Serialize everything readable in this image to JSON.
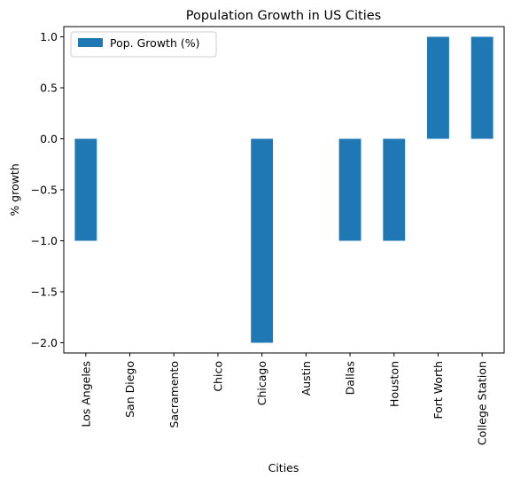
{
  "chart_data": {
    "type": "bar",
    "title": "Population Growth in US Cities",
    "xlabel": "Cities",
    "ylabel": "% growth",
    "categories": [
      "Los Angeles",
      "San Diego",
      "Sacramento",
      "Chico",
      "Chicago",
      "Austin",
      "Dallas",
      "Houston",
      "Fort Worth",
      "College Station"
    ],
    "series": [
      {
        "name": "Pop. Growth (%)",
        "values": [
          -1,
          0,
          0,
          0,
          -2,
          0,
          -1,
          -1,
          1,
          1
        ],
        "color": "#1f77b4"
      }
    ],
    "ylim": [
      -2.1,
      1.1
    ],
    "yticks": [
      1.0,
      0.5,
      0.0,
      -0.5,
      -1.0,
      -1.5,
      -2.0
    ],
    "ytick_labels": [
      "1.0",
      "0.5",
      "0.0",
      "−0.5",
      "−1.0",
      "−1.5",
      "−2.0"
    ],
    "legend_position": "top-left",
    "grid": false
  }
}
